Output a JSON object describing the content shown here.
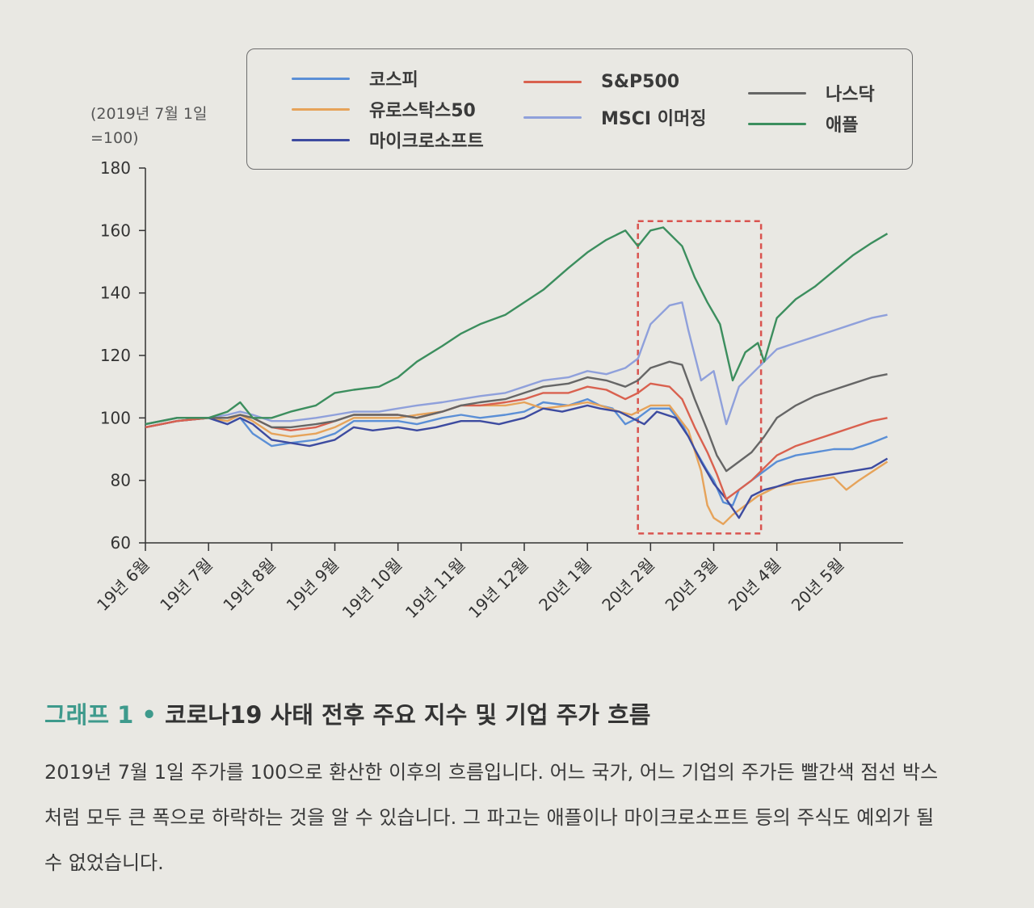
{
  "caption": {
    "number": "그래프 1",
    "separator": " • ",
    "title": "코로나19 사태 전후 주요 지수 및 기업 주가 흐름",
    "body": "2019년 7월 1일 주가를 100으로 환산한 이후의 흐름입니다. 어느 국가, 어느 기업의 주가든 빨간색 점선 박스처럼 모두 큰 폭으로 하락하는 것을 알 수 있습니다. 그 파고는 애플이나 마이크로소프트 등의 주식도 예외가 될 수 없었습니다."
  },
  "chart_data": {
    "type": "line",
    "title": "",
    "unit_label_line1": "(2019년 7월 1일",
    "unit_label_line2": "=100)",
    "xlabel": "",
    "ylabel": "",
    "ylim": [
      60,
      180
    ],
    "yticks": [
      "180",
      "160",
      "140",
      "120",
      "100",
      "80",
      "60"
    ],
    "x_range": [
      0,
      12
    ],
    "x_ticks": [
      "19년 6월",
      "19년 7월",
      "19년 8월",
      "19년 9월",
      "19년 10월",
      "19년 11월",
      "19년 12월",
      "20년 1월",
      "20년 2월",
      "20년 3월",
      "20년 4월",
      "20년 5월"
    ],
    "grid": false,
    "legend_position": "top",
    "highlight_box": {
      "x_range": [
        7.8,
        9.75
      ],
      "y_range": [
        63,
        163
      ],
      "color": "#d9534f",
      "style": "dashed"
    },
    "series": [
      {
        "name": "코스피",
        "color": "#5b8fd6",
        "points": [
          [
            0,
            97
          ],
          [
            0.5,
            99
          ],
          [
            1,
            100
          ],
          [
            1.3,
            98
          ],
          [
            1.5,
            100
          ],
          [
            1.7,
            95
          ],
          [
            2,
            91
          ],
          [
            2.3,
            92
          ],
          [
            2.7,
            93
          ],
          [
            3,
            95
          ],
          [
            3.3,
            99
          ],
          [
            3.7,
            99
          ],
          [
            4,
            99
          ],
          [
            4.3,
            98
          ],
          [
            4.7,
            100
          ],
          [
            5,
            101
          ],
          [
            5.3,
            100
          ],
          [
            5.7,
            101
          ],
          [
            6,
            102
          ],
          [
            6.3,
            105
          ],
          [
            6.7,
            104
          ],
          [
            7,
            106
          ],
          [
            7.2,
            104
          ],
          [
            7.4,
            103
          ],
          [
            7.6,
            98
          ],
          [
            7.8,
            100
          ],
          [
            8,
            103
          ],
          [
            8.3,
            103
          ],
          [
            8.5,
            98
          ],
          [
            8.7,
            90
          ],
          [
            8.9,
            83
          ],
          [
            9,
            80
          ],
          [
            9.15,
            73
          ],
          [
            9.3,
            72
          ],
          [
            9.4,
            77
          ],
          [
            9.6,
            80
          ],
          [
            9.8,
            83
          ],
          [
            10,
            86
          ],
          [
            10.3,
            88
          ],
          [
            10.6,
            89
          ],
          [
            10.9,
            90
          ],
          [
            11.2,
            90
          ],
          [
            11.5,
            92
          ],
          [
            11.75,
            94
          ]
        ]
      },
      {
        "name": "유로스탁스50",
        "color": "#e6a35a",
        "points": [
          [
            0,
            97
          ],
          [
            0.5,
            99
          ],
          [
            1,
            100
          ],
          [
            1.3,
            99
          ],
          [
            1.5,
            101
          ],
          [
            1.7,
            99
          ],
          [
            2,
            95
          ],
          [
            2.3,
            94
          ],
          [
            2.7,
            95
          ],
          [
            3,
            97
          ],
          [
            3.3,
            100
          ],
          [
            3.7,
            100
          ],
          [
            4,
            100
          ],
          [
            4.3,
            101
          ],
          [
            4.7,
            102
          ],
          [
            5,
            104
          ],
          [
            5.3,
            104
          ],
          [
            5.7,
            104
          ],
          [
            6,
            105
          ],
          [
            6.3,
            103
          ],
          [
            6.7,
            104
          ],
          [
            7,
            105
          ],
          [
            7.2,
            104
          ],
          [
            7.5,
            102
          ],
          [
            7.7,
            101
          ],
          [
            8,
            104
          ],
          [
            8.3,
            104
          ],
          [
            8.6,
            96
          ],
          [
            8.8,
            83
          ],
          [
            8.9,
            72
          ],
          [
            9,
            68
          ],
          [
            9.15,
            66
          ],
          [
            9.3,
            69
          ],
          [
            9.5,
            72
          ],
          [
            9.7,
            75
          ],
          [
            10,
            78
          ],
          [
            10.3,
            79
          ],
          [
            10.6,
            80
          ],
          [
            10.9,
            81
          ],
          [
            11.1,
            77
          ],
          [
            11.3,
            80
          ],
          [
            11.6,
            84
          ],
          [
            11.75,
            86
          ]
        ]
      },
      {
        "name": "마이크로소프트",
        "color": "#3d4ba0",
        "points": [
          [
            0,
            97
          ],
          [
            0.5,
            99
          ],
          [
            1,
            100
          ],
          [
            1.3,
            98
          ],
          [
            1.5,
            100
          ],
          [
            1.7,
            98
          ],
          [
            2,
            93
          ],
          [
            2.3,
            92
          ],
          [
            2.6,
            91
          ],
          [
            3,
            93
          ],
          [
            3.3,
            97
          ],
          [
            3.6,
            96
          ],
          [
            4,
            97
          ],
          [
            4.3,
            96
          ],
          [
            4.6,
            97
          ],
          [
            5,
            99
          ],
          [
            5.3,
            99
          ],
          [
            5.6,
            98
          ],
          [
            6,
            100
          ],
          [
            6.3,
            103
          ],
          [
            6.6,
            102
          ],
          [
            7,
            104
          ],
          [
            7.2,
            103
          ],
          [
            7.5,
            102
          ],
          [
            7.7,
            100
          ],
          [
            7.9,
            98
          ],
          [
            8.1,
            102
          ],
          [
            8.4,
            100
          ],
          [
            8.6,
            94
          ],
          [
            8.8,
            86
          ],
          [
            9,
            79
          ],
          [
            9.2,
            74
          ],
          [
            9.4,
            68
          ],
          [
            9.6,
            75
          ],
          [
            9.8,
            77
          ],
          [
            10,
            78
          ],
          [
            10.3,
            80
          ],
          [
            10.6,
            81
          ],
          [
            10.9,
            82
          ],
          [
            11.2,
            83
          ],
          [
            11.5,
            84
          ],
          [
            11.75,
            87
          ]
        ]
      },
      {
        "name": "S&P500",
        "color": "#d9614f",
        "points": [
          [
            0,
            97
          ],
          [
            0.5,
            99
          ],
          [
            1,
            100
          ],
          [
            1.3,
            100
          ],
          [
            1.5,
            101
          ],
          [
            1.7,
            100
          ],
          [
            2,
            97
          ],
          [
            2.3,
            96
          ],
          [
            2.7,
            97
          ],
          [
            3,
            99
          ],
          [
            3.3,
            101
          ],
          [
            3.7,
            101
          ],
          [
            4,
            101
          ],
          [
            4.3,
            100
          ],
          [
            4.7,
            102
          ],
          [
            5,
            104
          ],
          [
            5.3,
            104
          ],
          [
            5.7,
            105
          ],
          [
            6,
            106
          ],
          [
            6.3,
            108
          ],
          [
            6.7,
            108
          ],
          [
            7,
            110
          ],
          [
            7.3,
            109
          ],
          [
            7.6,
            106
          ],
          [
            7.8,
            108
          ],
          [
            8,
            111
          ],
          [
            8.3,
            110
          ],
          [
            8.5,
            106
          ],
          [
            8.7,
            97
          ],
          [
            8.9,
            89
          ],
          [
            9.05,
            82
          ],
          [
            9.2,
            74
          ],
          [
            9.4,
            77
          ],
          [
            9.6,
            80
          ],
          [
            9.8,
            84
          ],
          [
            10,
            88
          ],
          [
            10.3,
            91
          ],
          [
            10.6,
            93
          ],
          [
            10.9,
            95
          ],
          [
            11.2,
            97
          ],
          [
            11.5,
            99
          ],
          [
            11.75,
            100
          ]
        ]
      },
      {
        "name": "MSCI 이머징",
        "color": "#8fa0db",
        "points": [
          [
            0,
            98
          ],
          [
            0.5,
            100
          ],
          [
            1,
            100
          ],
          [
            1.3,
            101
          ],
          [
            1.5,
            102
          ],
          [
            1.7,
            101
          ],
          [
            2,
            99
          ],
          [
            2.3,
            99
          ],
          [
            2.7,
            100
          ],
          [
            3,
            101
          ],
          [
            3.3,
            102
          ],
          [
            3.7,
            102
          ],
          [
            4,
            103
          ],
          [
            4.3,
            104
          ],
          [
            4.7,
            105
          ],
          [
            5,
            106
          ],
          [
            5.3,
            107
          ],
          [
            5.7,
            108
          ],
          [
            6,
            110
          ],
          [
            6.3,
            112
          ],
          [
            6.7,
            113
          ],
          [
            7,
            115
          ],
          [
            7.3,
            114
          ],
          [
            7.6,
            116
          ],
          [
            7.8,
            119
          ],
          [
            8,
            130
          ],
          [
            8.3,
            136
          ],
          [
            8.5,
            137
          ],
          [
            8.6,
            128
          ],
          [
            8.8,
            112
          ],
          [
            9,
            115
          ],
          [
            9.2,
            98
          ],
          [
            9.4,
            110
          ],
          [
            9.6,
            114
          ],
          [
            9.8,
            118
          ],
          [
            10,
            122
          ],
          [
            10.3,
            124
          ],
          [
            10.6,
            126
          ],
          [
            10.9,
            128
          ],
          [
            11.2,
            130
          ],
          [
            11.5,
            132
          ],
          [
            11.75,
            133
          ]
        ]
      },
      {
        "name": "나스닥",
        "color": "#666666",
        "points": [
          [
            0,
            98
          ],
          [
            0.5,
            100
          ],
          [
            1,
            100
          ],
          [
            1.3,
            100
          ],
          [
            1.5,
            101
          ],
          [
            1.7,
            100
          ],
          [
            2,
            97
          ],
          [
            2.3,
            97
          ],
          [
            2.7,
            98
          ],
          [
            3,
            99
          ],
          [
            3.3,
            101
          ],
          [
            3.7,
            101
          ],
          [
            4,
            101
          ],
          [
            4.3,
            100
          ],
          [
            4.7,
            102
          ],
          [
            5,
            104
          ],
          [
            5.3,
            105
          ],
          [
            5.7,
            106
          ],
          [
            6,
            108
          ],
          [
            6.3,
            110
          ],
          [
            6.7,
            111
          ],
          [
            7,
            113
          ],
          [
            7.3,
            112
          ],
          [
            7.6,
            110
          ],
          [
            7.8,
            112
          ],
          [
            8,
            116
          ],
          [
            8.3,
            118
          ],
          [
            8.5,
            117
          ],
          [
            8.7,
            106
          ],
          [
            8.9,
            96
          ],
          [
            9.05,
            88
          ],
          [
            9.2,
            83
          ],
          [
            9.4,
            86
          ],
          [
            9.6,
            89
          ],
          [
            9.8,
            94
          ],
          [
            10,
            100
          ],
          [
            10.3,
            104
          ],
          [
            10.6,
            107
          ],
          [
            10.9,
            109
          ],
          [
            11.2,
            111
          ],
          [
            11.5,
            113
          ],
          [
            11.75,
            114
          ]
        ]
      },
      {
        "name": "애플",
        "color": "#3c8e5e",
        "points": [
          [
            0,
            98
          ],
          [
            0.5,
            100
          ],
          [
            1,
            100
          ],
          [
            1.3,
            102
          ],
          [
            1.5,
            105
          ],
          [
            1.7,
            100
          ],
          [
            2,
            100
          ],
          [
            2.3,
            102
          ],
          [
            2.7,
            104
          ],
          [
            3,
            108
          ],
          [
            3.3,
            109
          ],
          [
            3.7,
            110
          ],
          [
            4,
            113
          ],
          [
            4.3,
            118
          ],
          [
            4.7,
            123
          ],
          [
            5,
            127
          ],
          [
            5.3,
            130
          ],
          [
            5.7,
            133
          ],
          [
            6,
            137
          ],
          [
            6.3,
            141
          ],
          [
            6.7,
            148
          ],
          [
            7,
            153
          ],
          [
            7.3,
            157
          ],
          [
            7.6,
            160
          ],
          [
            7.8,
            155
          ],
          [
            8,
            160
          ],
          [
            8.2,
            161
          ],
          [
            8.5,
            155
          ],
          [
            8.7,
            145
          ],
          [
            8.9,
            137
          ],
          [
            9.1,
            130
          ],
          [
            9.3,
            112
          ],
          [
            9.5,
            121
          ],
          [
            9.7,
            124
          ],
          [
            9.8,
            118
          ],
          [
            10,
            132
          ],
          [
            10.3,
            138
          ],
          [
            10.6,
            142
          ],
          [
            10.9,
            147
          ],
          [
            11.2,
            152
          ],
          [
            11.5,
            156
          ],
          [
            11.75,
            159
          ]
        ]
      }
    ]
  }
}
